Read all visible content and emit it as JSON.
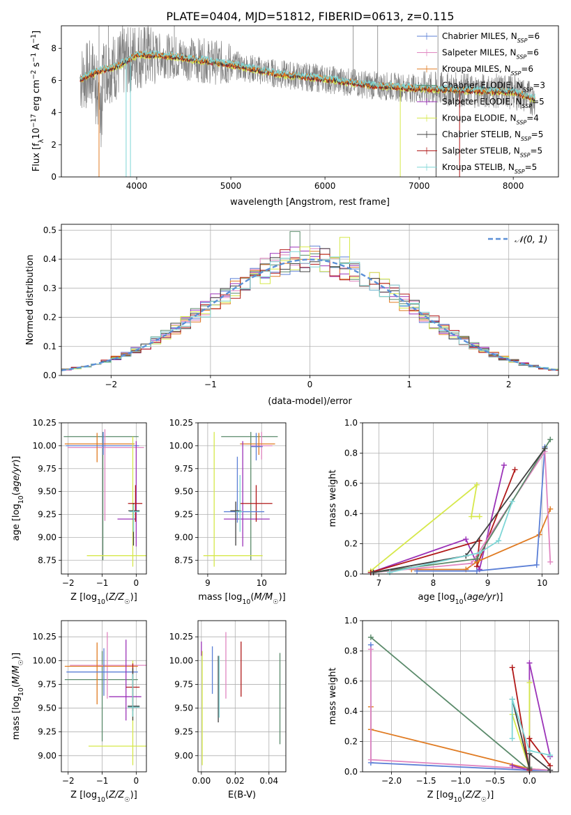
{
  "figure": {
    "title": "PLATE=0404, MJD=51812, FIBERID=0613, z=0.115"
  },
  "colors": {
    "chabrier_miles": "#5b7fd6",
    "salpeter_miles": "#e085c0",
    "kroupa_miles": "#e07b22",
    "chabrier_elodie": "#5a8a6a",
    "salpeter_elodie": "#9b32b8",
    "kroupa_elodie": "#d6e84a",
    "chabrier_stelib": "#404040",
    "salpeter_stelib": "#b01818",
    "kroupa_stelib": "#7ed6d6",
    "data": "#808080",
    "normal": "#5b8fd6"
  },
  "chart_data": [
    {
      "id": "spectrum",
      "type": "line",
      "xlabel": "wavelength [Angstrom, rest frame]",
      "ylabel": "Flux [f_λ 10^-17 erg cm^-2 s^-1 A^-1]",
      "xlim": [
        3200,
        8480
      ],
      "ylim": [
        0,
        9.4
      ],
      "xticks": [
        4000,
        5000,
        6000,
        7000,
        8000
      ],
      "yticks": [
        0,
        2,
        4,
        6,
        8
      ],
      "legend": [
        {
          "prefix": "Chabrier MILES, N",
          "sub": "SSP",
          "suffix": "=6",
          "color_key": "chabrier_miles"
        },
        {
          "prefix": "Salpeter MILES, N",
          "sub": "SSP",
          "suffix": "=6",
          "color_key": "salpeter_miles"
        },
        {
          "prefix": "Kroupa MILES, N",
          "sub": "SSP",
          "suffix": "=6",
          "color_key": "kroupa_miles"
        },
        {
          "prefix": "Chabrier ELODIE, N",
          "sub": "SSP",
          "suffix": "=3",
          "color_key": "chabrier_elodie"
        },
        {
          "prefix": "Salpeter ELODIE, N",
          "sub": "SSP",
          "suffix": "=5",
          "color_key": "salpeter_elodie"
        },
        {
          "prefix": "Kroupa ELODIE, N",
          "sub": "SSP",
          "suffix": "=4",
          "color_key": "kroupa_elodie"
        },
        {
          "prefix": "Chabrier STELIB, N",
          "sub": "SSP",
          "suffix": "=5",
          "color_key": "chabrier_stelib"
        },
        {
          "prefix": "Salpeter STELIB, N",
          "sub": "SSP",
          "suffix": "=5",
          "color_key": "salpeter_stelib"
        },
        {
          "prefix": "Kroupa STELIB, N",
          "sub": "SSP",
          "suffix": "=5",
          "color_key": "kroupa_stelib"
        }
      ],
      "continuum": [
        [
          3400,
          6.1
        ],
        [
          3600,
          6.6
        ],
        [
          3800,
          6.9
        ],
        [
          4000,
          7.6
        ],
        [
          4200,
          7.6
        ],
        [
          4500,
          7.4
        ],
        [
          5000,
          7.0
        ],
        [
          5500,
          6.4
        ],
        [
          6000,
          6.1
        ],
        [
          6500,
          5.7
        ],
        [
          7000,
          5.5
        ],
        [
          7500,
          5.4
        ],
        [
          8000,
          5.3
        ],
        [
          8200,
          4.9
        ]
      ],
      "lines_down": [
        3600,
        3888,
        3934,
        6800,
        7180,
        7430
      ]
    },
    {
      "id": "residuals",
      "type": "histogram",
      "xlabel": "(data-model)/error",
      "ylabel": "Normed distribution",
      "xlim": [
        -2.5,
        2.5
      ],
      "ylim": [
        0,
        0.52
      ],
      "xticks": [
        -2,
        -1,
        0,
        1,
        2
      ],
      "yticks": [
        0.0,
        0.1,
        0.2,
        0.3,
        0.4,
        0.5
      ],
      "bin_width": 0.1,
      "legend_label": "𝒩(0, 1)",
      "mean": 0,
      "sigma": 1
    },
    {
      "id": "age-vs-Z",
      "type": "errorbar",
      "xlabel": "Z [log10(Z/Z☉)]",
      "ylabel": "age [log10(age/yr)]",
      "xlim": [
        -2.2,
        0.3
      ],
      "ylim": [
        8.6,
        10.25
      ],
      "xticks": [
        -2,
        -1,
        0
      ],
      "yticks": [
        8.75,
        9.0,
        9.25,
        9.5,
        9.75,
        10.0,
        10.25
      ],
      "points": [
        {
          "c": "chabrier_elodie",
          "x": -0.98,
          "xe": [
            1.15,
            1.05
          ],
          "y": 10.1,
          "ye": [
            1.35,
            0.05
          ]
        },
        {
          "c": "salpeter_miles",
          "x": -0.92,
          "xe": [
            1.1,
            1.15
          ],
          "y": 9.98,
          "ye": [
            0.8,
            0.2
          ]
        },
        {
          "c": "kroupa_miles",
          "x": -1.15,
          "xe": [
            0.95,
            1.1
          ],
          "y": 10.02,
          "ye": [
            0.2,
            0.12
          ]
        },
        {
          "c": "chabrier_miles",
          "x": -0.97,
          "xe": [
            1.1,
            1.05
          ],
          "y": 10.0,
          "ye": [
            0.1,
            0.15
          ]
        },
        {
          "c": "kroupa_elodie",
          "x": -0.1,
          "xe": [
            1.35,
            0.5
          ],
          "y": 8.8,
          "ye": [
            0.12,
            1.3
          ]
        },
        {
          "c": "salpeter_elodie",
          "x": 0.0,
          "xe": [
            0.55,
            0.0
          ],
          "y": 9.2,
          "ye": [
            0.3,
            0.85
          ]
        },
        {
          "c": "salpeter_stelib",
          "x": -0.02,
          "xe": [
            0.22,
            0.2
          ],
          "y": 9.37,
          "ye": [
            0.2,
            0.2
          ]
        },
        {
          "c": "chabrier_stelib",
          "x": -0.08,
          "xe": [
            0.15,
            0.18
          ],
          "y": 9.29,
          "ye": [
            0.38,
            0.08
          ]
        },
        {
          "c": "kroupa_stelib",
          "x": -0.08,
          "xe": [
            0.12,
            0.18
          ],
          "y": 9.28,
          "ye": [
            0.22,
            0.08
          ]
        }
      ]
    },
    {
      "id": "age-vs-mass",
      "type": "errorbar",
      "xlabel": "mass [log10(M/M☉)]",
      "ylabel": "",
      "xlim": [
        8.82,
        10.45
      ],
      "ylim": [
        8.6,
        10.25
      ],
      "xticks": [
        9,
        10
      ],
      "yticks": [
        8.75,
        9.0,
        9.25,
        9.5,
        9.75,
        10.0,
        10.25
      ],
      "points": [
        {
          "c": "chabrier_elodie",
          "x": 9.8,
          "xe": [
            0.55,
            0.5
          ],
          "y": 10.1,
          "ye": [
            1.35,
            0.05
          ]
        },
        {
          "c": "salpeter_miles",
          "x": 10.0,
          "xe": [
            0.2,
            0.2
          ],
          "y": 10.0,
          "ye": [
            0.15,
            0.15
          ]
        },
        {
          "c": "kroupa_miles",
          "x": 9.95,
          "xe": [
            0.35,
            0.3
          ],
          "y": 10.02,
          "ye": [
            0.12,
            0.12
          ]
        },
        {
          "c": "chabrier_miles",
          "x": 9.9,
          "xe": [
            0.1,
            0.12
          ],
          "y": 9.99,
          "ye": [
            0.15,
            0.15
          ]
        },
        {
          "c": "kroupa_elodie",
          "x": 9.12,
          "xe": [
            0.2,
            0.9
          ],
          "y": 8.8,
          "ye": [
            0.12,
            1.35
          ]
        },
        {
          "c": "salpeter_elodie",
          "x": 9.65,
          "xe": [
            0.35,
            0.5
          ],
          "y": 9.2,
          "ye": [
            0.3,
            0.85
          ]
        },
        {
          "c": "salpeter_stelib",
          "x": 9.9,
          "xe": [
            0.3,
            0.3
          ],
          "y": 9.37,
          "ye": [
            0.2,
            0.2
          ]
        },
        {
          "c": "chabrier_miles",
          "x": 9.55,
          "xe": [
            0.25,
            0.5
          ],
          "y": 9.28,
          "ye": [
            0.12,
            0.6
          ]
        },
        {
          "c": "chabrier_stelib",
          "x": 9.52,
          "xe": [
            0.1,
            0.1
          ],
          "y": 9.29,
          "ye": [
            0.38,
            0.1
          ]
        },
        {
          "c": "kroupa_stelib",
          "x": 9.6,
          "xe": [
            0.08,
            0.05
          ],
          "y": 9.28,
          "ye": [
            0.22,
            0.4
          ]
        }
      ]
    },
    {
      "id": "mass-weight-vs-age",
      "type": "line",
      "xlabel": "age [log10(age/yr)]",
      "ylabel": "mass weight",
      "xlim": [
        6.7,
        10.3
      ],
      "ylim": [
        0,
        1
      ],
      "xticks": [
        7,
        8,
        9,
        10
      ],
      "yticks": [
        0.0,
        0.2,
        0.4,
        0.6,
        0.8,
        1.0
      ],
      "series": [
        {
          "c": "kroupa_elodie",
          "x": [
            6.85,
            8.8,
            8.7,
            8.85
          ],
          "y": [
            0.02,
            0.59,
            0.38,
            0.38
          ]
        },
        {
          "c": "salpeter_elodie",
          "x": [
            6.85,
            8.6,
            8.85,
            9.3
          ],
          "y": [
            0.01,
            0.23,
            0.03,
            0.72
          ]
        },
        {
          "c": "salpeter_stelib",
          "x": [
            6.85,
            8.85,
            8.8,
            9.5
          ],
          "y": [
            0.01,
            0.22,
            0.05,
            0.69
          ]
        },
        {
          "c": "kroupa_miles",
          "x": [
            7.6,
            8.6,
            8.8,
            9.95,
            10.15
          ],
          "y": [
            0.03,
            0.03,
            0.08,
            0.26,
            0.43
          ]
        },
        {
          "c": "chabrier_miles",
          "x": [
            7.7,
            8.8,
            9.9,
            10.05
          ],
          "y": [
            0.02,
            0.02,
            0.06,
            0.84
          ]
        },
        {
          "c": "salpeter_miles",
          "x": [
            6.9,
            8.7,
            10.05,
            10.15
          ],
          "y": [
            0.01,
            0.07,
            0.81,
            0.08
          ]
        },
        {
          "c": "chabrier_elodie",
          "x": [
            6.9,
            8.8,
            10.15
          ],
          "y": [
            0.01,
            0.1,
            0.89
          ]
        },
        {
          "c": "chabrier_stelib",
          "x": [
            6.9,
            8.6,
            10.05
          ],
          "y": [
            0.01,
            0.12,
            0.83
          ]
        },
        {
          "c": "kroupa_stelib",
          "x": [
            7.2,
            8.85,
            9.2,
            9.45
          ],
          "y": [
            0.01,
            0.14,
            0.22,
            0.48
          ]
        }
      ]
    },
    {
      "id": "mass-vs-Z",
      "type": "errorbar",
      "xlabel": "Z [log10(Z/Z☉)]",
      "ylabel": "mass [log10(M/M☉)]",
      "xlim": [
        -2.2,
        0.3
      ],
      "ylim": [
        8.83,
        10.42
      ],
      "xticks": [
        -2,
        -1,
        0
      ],
      "yticks": [
        9.0,
        9.25,
        9.5,
        9.75,
        10.0,
        10.25
      ],
      "points": [
        {
          "c": "chabrier_elodie",
          "x": -1.0,
          "xe": [
            1.1,
            1.05
          ],
          "y": 9.8,
          "ye": [
            0.65,
            0.3
          ]
        },
        {
          "c": "salpeter_miles",
          "x": -0.85,
          "xe": [
            1.1,
            1.15
          ],
          "y": 9.95,
          "ye": [
            0.35,
            0.35
          ]
        },
        {
          "c": "kroupa_miles",
          "x": -1.15,
          "xe": [
            0.95,
            1.2
          ],
          "y": 9.94,
          "ye": [
            0.4,
            0.25
          ]
        },
        {
          "c": "chabrier_miles",
          "x": -0.95,
          "xe": [
            1.1,
            1.0
          ],
          "y": 9.88,
          "ye": [
            0.25,
            0.25
          ]
        },
        {
          "c": "kroupa_elodie",
          "x": -0.1,
          "xe": [
            1.3,
            0.4
          ],
          "y": 9.1,
          "ye": [
            0.2,
            0.9
          ]
        },
        {
          "c": "salpeter_elodie",
          "x": -0.3,
          "xe": [
            0.5,
            0.45
          ],
          "y": 9.62,
          "ye": [
            0.25,
            0.6
          ]
        },
        {
          "c": "salpeter_stelib",
          "x": -0.1,
          "xe": [
            0.2,
            0.2
          ],
          "y": 9.72,
          "ye": [
            0.25,
            0.25
          ]
        },
        {
          "c": "chabrier_stelib",
          "x": -0.1,
          "xe": [
            0.15,
            0.2
          ],
          "y": 9.52,
          "ye": [
            0.15,
            0.4
          ]
        },
        {
          "c": "kroupa_stelib",
          "x": -0.1,
          "xe": [
            0.15,
            0.2
          ],
          "y": 9.51,
          "ye": [
            0.1,
            0.35
          ]
        }
      ]
    },
    {
      "id": "mass-vs-EBV",
      "type": "errorbar",
      "xlabel": "E(B-V)",
      "ylabel": "",
      "xlim": [
        -0.002,
        0.05
      ],
      "ylim": [
        8.83,
        10.42
      ],
      "xticks": [
        0.0,
        0.02,
        0.04
      ],
      "yticks": [
        9.0,
        9.25,
        9.5,
        9.75,
        10.0,
        10.25
      ],
      "points": [
        {
          "c": "salpeter_elodie",
          "x": 0.0,
          "xe": [
            0,
            0
          ],
          "y": 10.15,
          "ye": [
            0.1,
            0.05
          ]
        },
        {
          "c": "kroupa_elodie",
          "x": 0.0005,
          "xe": [
            0,
            0
          ],
          "y": 9.5,
          "ye": [
            0.6,
            0.6
          ]
        },
        {
          "c": "chabrier_miles",
          "x": 0.0065,
          "xe": [
            0,
            0
          ],
          "y": 9.85,
          "ye": [
            0.2,
            0.3
          ]
        },
        {
          "c": "chabrier_stelib",
          "x": 0.01,
          "xe": [
            0,
            0
          ],
          "y": 9.7,
          "ye": [
            0.35,
            0.35
          ]
        },
        {
          "c": "kroupa_stelib",
          "x": 0.0105,
          "xe": [
            0,
            0
          ],
          "y": 9.6,
          "ye": [
            0.2,
            0.45
          ]
        },
        {
          "c": "salpeter_miles",
          "x": 0.0145,
          "xe": [
            0,
            0
          ],
          "y": 9.95,
          "ye": [
            0.35,
            0.35
          ]
        },
        {
          "c": "salpeter_stelib",
          "x": 0.0235,
          "xe": [
            0,
            0
          ],
          "y": 9.9,
          "ye": [
            0.28,
            0.3
          ]
        },
        {
          "c": "chabrier_elodie",
          "x": 0.0465,
          "xe": [
            0,
            0
          ],
          "y": 9.6,
          "ye": [
            0.48,
            0.48
          ]
        }
      ]
    },
    {
      "id": "mass-weight-vs-Z",
      "type": "line",
      "xlabel": "Z [log10(Z/Z☉)]",
      "ylabel": "mass weight",
      "xlim": [
        -2.42,
        0.42
      ],
      "ylim": [
        0,
        1
      ],
      "xticks": [
        -2.0,
        -1.5,
        -1.0,
        -0.5,
        0.0
      ],
      "yticks": [
        0.0,
        0.2,
        0.4,
        0.6,
        0.8,
        1.0
      ],
      "series": [
        {
          "c": "chabrier_elodie",
          "x": [
            -2.3,
            0.0,
            0.0
          ],
          "y": [
            0.89,
            0.01,
            0.03
          ]
        },
        {
          "c": "kroupa_miles",
          "x": [
            -2.3,
            -2.3,
            0.0,
            0.3
          ],
          "y": [
            0.43,
            0.28,
            0.02,
            0.01
          ]
        },
        {
          "c": "chabrier_miles",
          "x": [
            -2.3,
            -2.3,
            0.0,
            0.3
          ],
          "y": [
            0.84,
            0.06,
            0.01,
            0.01
          ]
        },
        {
          "c": "salpeter_miles",
          "x": [
            -2.3,
            -2.3,
            0.0,
            0.3
          ],
          "y": [
            0.81,
            0.08,
            0.02,
            0.01
          ]
        },
        {
          "c": "salpeter_elodie",
          "x": [
            -0.25,
            0.0,
            0.0,
            0.3
          ],
          "y": [
            0.04,
            0.01,
            0.72,
            0.1
          ]
        },
        {
          "c": "kroupa_elodie",
          "x": [
            -0.25,
            0.0,
            0.0
          ],
          "y": [
            0.38,
            0.02,
            0.59
          ]
        },
        {
          "c": "salpeter_stelib",
          "x": [
            -0.25,
            0.0,
            0.0,
            0.3
          ],
          "y": [
            0.69,
            0.01,
            0.22,
            0.04
          ]
        },
        {
          "c": "chabrier_stelib",
          "x": [
            -0.25,
            0.0,
            0.0,
            0.3
          ],
          "y": [
            0.48,
            0.02,
            0.12,
            0.01
          ]
        },
        {
          "c": "kroupa_stelib",
          "x": [
            -0.25,
            -0.25,
            0.0,
            0.3
          ],
          "y": [
            0.22,
            0.48,
            0.14,
            0.11
          ]
        }
      ]
    }
  ]
}
